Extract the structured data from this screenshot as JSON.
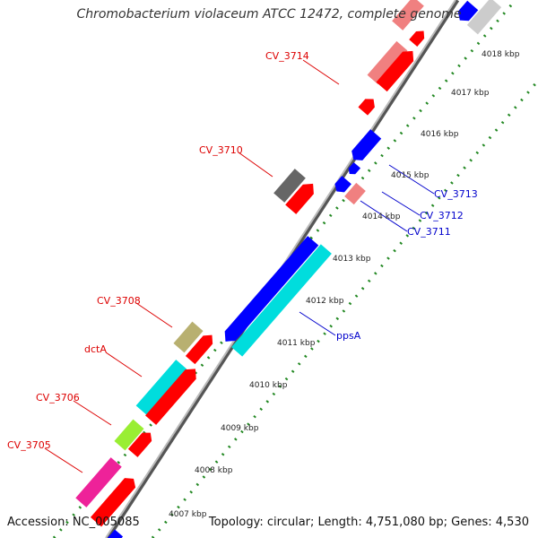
{
  "title": "Chromobacterium violaceum ATCC 12472, complete genome",
  "footer": {
    "accession": "Accession: NC_005085",
    "topology": "Topology: circular; Length: 4,751,080 bp; Genes: 4,530"
  },
  "kbp_ticks": [
    {
      "label": "4007 kbp",
      "t": 0.86
    },
    {
      "label": "4008 kbp",
      "t": 0.79
    },
    {
      "label": "4009 kbp",
      "t": 0.72
    },
    {
      "label": "4010 kbp",
      "t": 0.645
    },
    {
      "label": "4011 kbp",
      "t": 0.575
    },
    {
      "label": "4012 kbp",
      "t": 0.5
    },
    {
      "label": "4013 kbp",
      "t": 0.43
    },
    {
      "label": "4014 kbp",
      "t": 0.355
    },
    {
      "label": "4015 kbp",
      "t": 0.28
    },
    {
      "label": "4016 kbp",
      "t": 0.205
    },
    {
      "label": "4017 kbp",
      "t": 0.13
    },
    {
      "label": "4018 kbp",
      "t": 0.055
    }
  ],
  "gene_labels_left": [
    {
      "name": "CV_3714",
      "color": "#dd0000"
    },
    {
      "name": "CV_3710",
      "color": "#dd0000"
    },
    {
      "name": "CV_3708",
      "color": "#dd0000"
    },
    {
      "name": "dctA",
      "color": "#dd0000"
    },
    {
      "name": "CV_3706",
      "color": "#dd0000"
    },
    {
      "name": "CV_3705",
      "color": "#dd0000"
    }
  ],
  "gene_labels_right": [
    {
      "name": "CV_3713",
      "color": "#0000cc"
    },
    {
      "name": "CV_3712",
      "color": "#0000cc"
    },
    {
      "name": "CV_3711",
      "color": "#0000cc"
    },
    {
      "name": "ppsA",
      "color": "#0000cc"
    }
  ],
  "colors": {
    "forward": "#ff0000",
    "reverse": "#0000ff",
    "grey": "#666666",
    "pink": "#f08080",
    "cyan": "#00dddd",
    "khaki": "#b8b070",
    "lime": "#99ee33",
    "magenta": "#ee2299",
    "light_grey": "#cccccc",
    "backbone": "#888888",
    "dots": "#228822"
  }
}
